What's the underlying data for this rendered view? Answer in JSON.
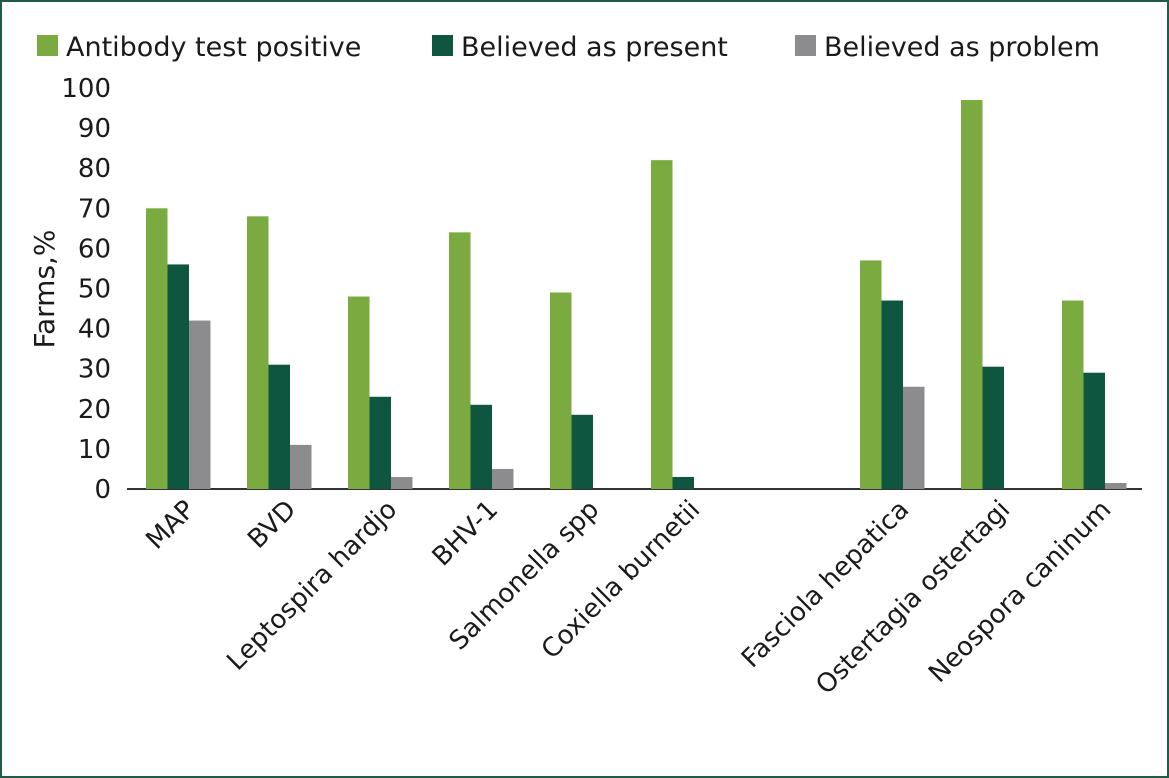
{
  "chart_data": {
    "type": "bar",
    "title": "",
    "xlabel": "",
    "ylabel": "Farms,%",
    "ylim": [
      0,
      100
    ],
    "yticks": [
      0,
      10,
      20,
      30,
      40,
      50,
      60,
      70,
      80,
      90,
      100
    ],
    "grid": false,
    "legend_position": "top",
    "categories": [
      "MAP",
      "BVD",
      "Leptospira hardjo",
      "BHV-1",
      "Salmonella spp",
      "Coxiella burnetii",
      "Fasciola hepatica",
      "Ostertagia ostertagi",
      "Neospora caninum"
    ],
    "series": [
      {
        "name": "Antibody test positive",
        "color": "#7aaa40",
        "values": [
          70,
          68,
          48,
          64,
          49,
          82,
          57,
          97,
          47
        ]
      },
      {
        "name": "Believed as present",
        "color": "#0f5641",
        "values": [
          56,
          31,
          23,
          21,
          18.5,
          3,
          47,
          30.5,
          29
        ]
      },
      {
        "name": "Believed as problem",
        "color": "#8c8c8e",
        "values": [
          42,
          11,
          3,
          5,
          0,
          0,
          25.5,
          0,
          1.5
        ]
      }
    ]
  }
}
